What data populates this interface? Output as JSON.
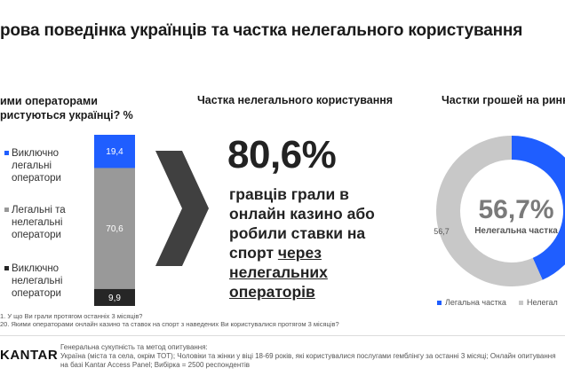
{
  "title": "рова поведінка українців та частка нелегального користування",
  "section1": {
    "question_line1": "ими операторами",
    "question_line2": "ристуються українці? %"
  },
  "section2": {
    "heading": "Частка нелегального користування",
    "big_value": "80,6%",
    "text_plain": "гравців грали в онлайн казино або робили ставки на спорт ",
    "text_underlined": "через нелегальних операторів"
  },
  "section3": {
    "heading": "Частки грошей на ринк",
    "center_value": "56,7%",
    "center_label": "Нелегальна частка"
  },
  "notes": {
    "line1": "1. У що Ви грали протягом останніх 3 місяців?",
    "line2": "20. Якими операторами онлайн казино та ставок на спорт з наведених Ви користувалися протягом 3 місяців?"
  },
  "footer": {
    "logo": "KANTAR",
    "heading": "Генеральна сукупність та метод опитування:",
    "body": "Україна (міста та села, окрім ТОТ); Чоловіки та жінки у віці 18-69 років, які користувалися послугами гемблінгу за останні 3 місяці; Онлайн опитування на базі Kantar Access Panel; Вибірка = 2500 респондентів"
  },
  "colors": {
    "blue": "#1f5eff",
    "gray": "#999999",
    "black": "#262626",
    "light_gray": "#c8c8c8",
    "chevron": "#404040"
  },
  "chart_data": [
    {
      "type": "bar",
      "stacked": true,
      "series": [
        {
          "name": "Виключно легальні оператори",
          "value": 19.4,
          "label": "19,4",
          "color": "#1f5eff"
        },
        {
          "name": "Легальні та нелегальні оператори",
          "value": 70.6,
          "label": "70,6",
          "color": "#999999"
        },
        {
          "name": "Виключно нелегальні оператори",
          "value": 9.9,
          "label": "9,9",
          "color": "#262626"
        }
      ]
    },
    {
      "type": "pie",
      "donut": true,
      "slices": [
        {
          "name": "Легальна частка",
          "value": 43.3,
          "label": "",
          "color": "#1f5eff"
        },
        {
          "name": "Нелегал",
          "value": 56.7,
          "label": "56,7",
          "color": "#c8c8c8"
        }
      ]
    }
  ]
}
